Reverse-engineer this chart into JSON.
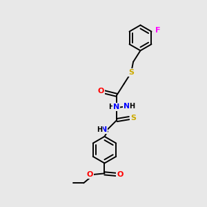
{
  "bg_color": "#e8e8e8",
  "atom_colors": {
    "C": "#000000",
    "H": "#000000",
    "N": "#0000ff",
    "O": "#ff0000",
    "S": "#ccaa00",
    "F": "#ff00ff"
  },
  "bond_color": "#000000",
  "figsize": [
    3.0,
    3.0
  ],
  "dpi": 100,
  "lw": 1.4,
  "fs": 7.5
}
